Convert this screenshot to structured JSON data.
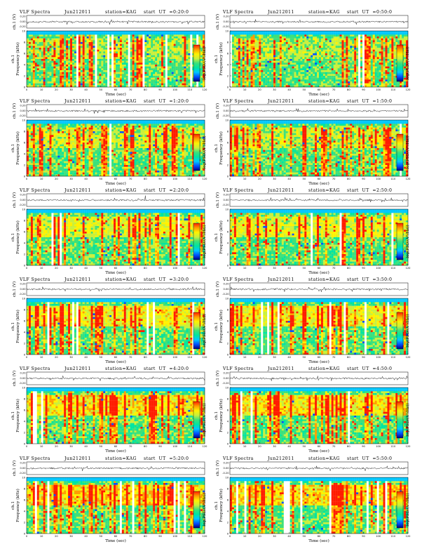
{
  "figure": {
    "background": "#ffffff"
  },
  "colormap": [
    "#00007f",
    "#0050ff",
    "#00c8ff",
    "#00e5a0",
    "#3de07a",
    "#c9f03c",
    "#fff200",
    "#ff9d00",
    "#ff1c00",
    "#ffffff"
  ],
  "panels": [
    {
      "title": "VLF Spectra",
      "date": "Jun212011",
      "station": "station=KAG",
      "ut": "start  UT  =0:20:0"
    },
    {
      "title": "VLF Spectra",
      "date": "Jun212011",
      "station": "station=KAG",
      "ut": "start  UT  =0:50:0"
    },
    {
      "title": "VLF Spectra",
      "date": "Jun212011",
      "station": "station=KAG",
      "ut": "start  UT  =1:20:0"
    },
    {
      "title": "VLF Spectra",
      "date": "Jun212011",
      "station": "station=KAG",
      "ut": "start  UT  =1:50:0"
    },
    {
      "title": "VLF Spectra",
      "date": "Jun212011",
      "station": "station=KAG",
      "ut": "start  UT  =2:20:0"
    },
    {
      "title": "VLF Spectra",
      "date": "Jun212011",
      "station": "station=KAG",
      "ut": "start  UT  =2:50:0"
    },
    {
      "title": "VLF Spectra",
      "date": "Jun212011",
      "station": "station=KAG",
      "ut": "start  UT  =3:20:0"
    },
    {
      "title": "VLF Spectra",
      "date": "Jun212011",
      "station": "station=KAG",
      "ut": "start  UT  =3:50:0"
    },
    {
      "title": "VLF Spectra",
      "date": "Jun212011",
      "station": "station=KAG",
      "ut": "start  UT  =4:20:0"
    },
    {
      "title": "VLF Spectra",
      "date": "Jun212011",
      "station": "station=KAG",
      "ut": "start  UT  =4:50:0"
    },
    {
      "title": "VLF Spectra",
      "date": "Jun212011",
      "station": "station=KAG",
      "ut": "start  UT  =5:20:0"
    },
    {
      "title": "VLF Spectra",
      "date": "Jun212011",
      "station": "station=KAG",
      "ut": "start  UT  =5:50:0"
    }
  ],
  "axes": {
    "waveform_ylabel": "ch.1 (V)",
    "waveform_yticks": [
      "0.20",
      "0.00",
      "-0.20"
    ],
    "spectrogram_ylabel": "Frequency  (kHz)",
    "channel_label": "ch.1",
    "spectrogram_yticks": [
      "0",
      "2",
      "4",
      "6",
      "8",
      "10"
    ],
    "xticks": [
      "0",
      "10",
      "20",
      "30",
      "40",
      "50",
      "60",
      "70",
      "80",
      "90",
      "100",
      "110",
      "120"
    ],
    "xlabel": "Time  (sec)",
    "colorbar_label": "log(PSD/(V²/Hz))",
    "colorbar_ticks": [
      "-",
      "-"
    ]
  },
  "chart_data": [
    {
      "type": "heatmap",
      "title": "VLF Spectra Jun212011 station=KAG start UT =0:20:0",
      "xlabel": "Time (sec)",
      "ylabel": "Frequency (kHz)",
      "xlim": [
        0,
        120
      ],
      "ylim": [
        0,
        10
      ],
      "grid": false
    },
    {
      "type": "heatmap",
      "title": "VLF Spectra Jun212011 station=KAG start UT =0:50:0",
      "xlabel": "Time (sec)",
      "ylabel": "Frequency (kHz)",
      "xlim": [
        0,
        120
      ],
      "ylim": [
        0,
        10
      ],
      "grid": false
    },
    {
      "type": "heatmap",
      "title": "VLF Spectra Jun212011 station=KAG start UT =1:20:0",
      "xlabel": "Time (sec)",
      "ylabel": "Frequency (kHz)",
      "xlim": [
        0,
        120
      ],
      "ylim": [
        0,
        10
      ],
      "grid": false
    },
    {
      "type": "heatmap",
      "title": "VLF Spectra Jun212011 station=KAG start UT =1:50:0",
      "xlabel": "Time (sec)",
      "ylabel": "Frequency (kHz)",
      "xlim": [
        0,
        120
      ],
      "ylim": [
        0,
        10
      ],
      "grid": false
    },
    {
      "type": "heatmap",
      "title": "VLF Spectra Jun212011 station=KAG start UT =2:20:0",
      "xlabel": "Time (sec)",
      "ylabel": "Frequency (kHz)",
      "xlim": [
        0,
        120
      ],
      "ylim": [
        0,
        10
      ],
      "grid": false
    },
    {
      "type": "heatmap",
      "title": "VLF Spectra Jun212011 station=KAG start UT =2:50:0",
      "xlabel": "Time (sec)",
      "ylabel": "Frequency (kHz)",
      "xlim": [
        0,
        120
      ],
      "ylim": [
        0,
        10
      ],
      "grid": false
    },
    {
      "type": "heatmap",
      "title": "VLF Spectra Jun212011 station=KAG start UT =3:20:0",
      "xlabel": "Time (sec)",
      "ylabel": "Frequency (kHz)",
      "xlim": [
        0,
        120
      ],
      "ylim": [
        0,
        10
      ],
      "grid": false
    },
    {
      "type": "heatmap",
      "title": "VLF Spectra Jun212011 station=KAG start UT =3:50:0",
      "xlabel": "Time (sec)",
      "ylabel": "Frequency (kHz)",
      "xlim": [
        0,
        120
      ],
      "ylim": [
        0,
        10
      ],
      "grid": false
    },
    {
      "type": "heatmap",
      "title": "VLF Spectra Jun212011 station=KAG start UT =4:20:0",
      "xlabel": "Time (sec)",
      "ylabel": "Frequency (kHz)",
      "xlim": [
        0,
        120
      ],
      "ylim": [
        0,
        10
      ],
      "grid": false
    },
    {
      "type": "heatmap",
      "title": "VLF Spectra Jun212011 station=KAG start UT =4:50:0",
      "xlabel": "Time (sec)",
      "ylabel": "Frequency (kHz)",
      "xlim": [
        0,
        120
      ],
      "ylim": [
        0,
        10
      ],
      "grid": false
    },
    {
      "type": "heatmap",
      "title": "VLF Spectra Jun212011 station=KAG start UT =5:20:0",
      "xlabel": "Time (sec)",
      "ylabel": "Frequency (kHz)",
      "xlim": [
        0,
        120
      ],
      "ylim": [
        0,
        10
      ],
      "grid": false
    },
    {
      "type": "heatmap",
      "title": "VLF Spectra Jun212011 station=KAG start UT =5:50:0",
      "xlabel": "Time (sec)",
      "ylabel": "Frequency (kHz)",
      "xlim": [
        0,
        120
      ],
      "ylim": [
        0,
        10
      ],
      "grid": false
    }
  ]
}
